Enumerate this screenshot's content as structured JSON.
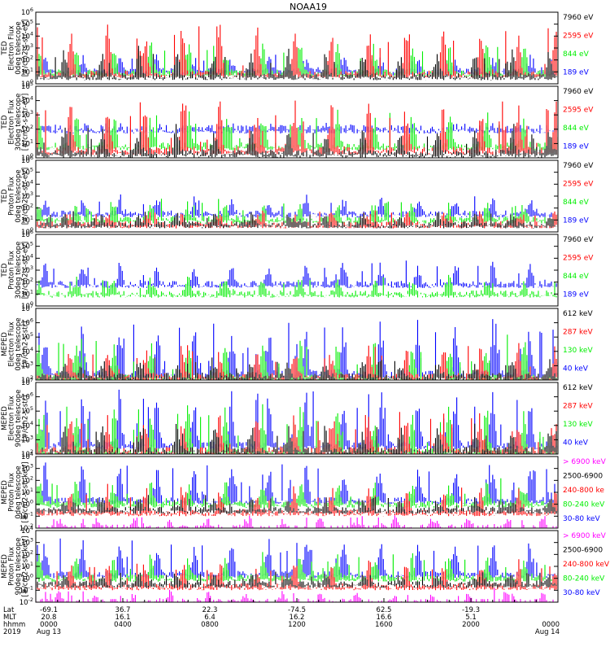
{
  "title": "NOAA19",
  "colors": {
    "black": "#000000",
    "red": "#ff0000",
    "green": "#00ee00",
    "blue": "#0000ff",
    "magenta": "#ff00ff"
  },
  "panels": [
    {
      "ylabel": [
        "TED",
        "Electron Flux",
        "0deg telescope",
        "[#/cm2-s-str-eV]"
      ],
      "ticks": [
        {
          "t": "10",
          "e": "6"
        },
        {
          "t": "10",
          "e": "5"
        },
        {
          "t": "10",
          "e": "4"
        },
        {
          "t": "10",
          "e": "3"
        },
        {
          "t": "10",
          "e": "2"
        },
        {
          "t": "10",
          "e": "1"
        },
        {
          "t": "10",
          "e": "0"
        }
      ],
      "legend": [
        {
          "text": "7960 eV",
          "color": "black"
        },
        {
          "text": "2595 eV",
          "color": "red"
        },
        {
          "text": "844 eV",
          "color": "green"
        },
        {
          "text": "189 eV",
          "color": "blue"
        }
      ]
    },
    {
      "ylabel": [
        "TED",
        "Electron Flux",
        "30deg telescope",
        "[#/cm2-s-str-eV]"
      ],
      "ticks": [
        {
          "t": "10",
          "e": "5"
        },
        {
          "t": "10",
          "e": "4"
        },
        {
          "t": "10",
          "e": "3"
        },
        {
          "t": "10",
          "e": "2"
        },
        {
          "t": "10",
          "e": "1"
        },
        {
          "t": "10",
          "e": "0"
        }
      ],
      "legend": [
        {
          "text": "7960 eV",
          "color": "black"
        },
        {
          "text": "2595 eV",
          "color": "red"
        },
        {
          "text": "844 eV",
          "color": "green"
        },
        {
          "text": "189 eV",
          "color": "blue"
        }
      ]
    },
    {
      "ylabel": [
        "TED",
        "Proton Flux",
        "0deg telescope",
        "[#/cm2-s-str-eV]"
      ],
      "ticks": [
        {
          "t": "10",
          "e": "6"
        },
        {
          "t": "10",
          "e": "5"
        },
        {
          "t": "10",
          "e": "4"
        },
        {
          "t": "10",
          "e": "3"
        },
        {
          "t": "10",
          "e": "2"
        },
        {
          "t": "10",
          "e": "1"
        },
        {
          "t": "10",
          "e": "0"
        }
      ],
      "legend": [
        {
          "text": "7960 eV",
          "color": "black"
        },
        {
          "text": "2595 eV",
          "color": "red"
        },
        {
          "text": "844 eV",
          "color": "green"
        },
        {
          "text": "189 eV",
          "color": "blue"
        }
      ]
    },
    {
      "ylabel": [
        "TED",
        "Proton Flux",
        "30deg telescope",
        "[#/cm2-s-str-eV]"
      ],
      "ticks": [
        {
          "t": "10",
          "e": "6"
        },
        {
          "t": "10",
          "e": "5"
        },
        {
          "t": "10",
          "e": "4"
        },
        {
          "t": "10",
          "e": "3"
        },
        {
          "t": "10",
          "e": "2"
        },
        {
          "t": "10",
          "e": "1"
        },
        {
          "t": "10",
          "e": "0"
        }
      ],
      "legend": [
        {
          "text": "7960 eV",
          "color": "black"
        },
        {
          "text": "2595 eV",
          "color": "red"
        },
        {
          "text": "844 eV",
          "color": "green"
        },
        {
          "text": "189 eV",
          "color": "blue"
        }
      ]
    },
    {
      "ylabel": [
        "MEPED",
        "Electron Flux",
        "0deg telescope",
        "[#/cm2-s-str]"
      ],
      "ticks": [
        {
          "t": "10",
          "e": "7"
        },
        {
          "t": "10",
          "e": "6"
        },
        {
          "t": "10",
          "e": "5"
        },
        {
          "t": "10",
          "e": "4"
        },
        {
          "t": "10",
          "e": "3"
        },
        {
          "t": "10",
          "e": "2"
        }
      ],
      "legend": [
        {
          "text": "612 keV",
          "color": "black"
        },
        {
          "text": "287 keV",
          "color": "red"
        },
        {
          "text": "130 keV",
          "color": "green"
        },
        {
          "text": "40 keV",
          "color": "blue"
        }
      ]
    },
    {
      "ylabel": [
        "MEPED",
        "Electron Flux",
        "90deg telescope",
        "[#/cm2-s-str]"
      ],
      "ticks": [
        {
          "t": "10",
          "e": "7"
        },
        {
          "t": "10",
          "e": "6"
        },
        {
          "t": "10",
          "e": "5"
        },
        {
          "t": "10",
          "e": "4"
        },
        {
          "t": "10",
          "e": "3"
        },
        {
          "t": "10",
          "e": "2"
        }
      ],
      "legend": [
        {
          "text": "612 keV",
          "color": "black"
        },
        {
          "text": "287 keV",
          "color": "red"
        },
        {
          "text": "130 keV",
          "color": "green"
        },
        {
          "text": "40 keV",
          "color": "blue"
        }
      ]
    },
    {
      "ylabel": [
        "MEPED",
        "Proton Flux",
        "0deg telescope",
        "[#/cm2-s-str-keV]"
      ],
      "ticks": [
        {
          "t": "10",
          "e": "4"
        },
        {
          "t": "10",
          "e": "3"
        },
        {
          "t": "10",
          "e": "2"
        },
        {
          "t": "10",
          "e": "1"
        },
        {
          "t": "10",
          "e": "0"
        },
        {
          "t": "10",
          "e": "-1"
        },
        {
          "t": "10",
          "e": "-2"
        }
      ],
      "legend": [
        {
          "text": "> 6900 keV",
          "color": "magenta"
        },
        {
          "text": "2500-6900",
          "color": "black"
        },
        {
          "text": "240-800 ke",
          "color": "red"
        },
        {
          "text": "80-240 keV",
          "color": "green"
        },
        {
          "text": "30-80 keV",
          "color": "blue"
        }
      ]
    },
    {
      "ylabel": [
        "MEPED",
        "Proton Flux",
        "90deg telescope",
        "[#/cm2-s-str-keV]"
      ],
      "ticks": [
        {
          "t": "10",
          "e": "4"
        },
        {
          "t": "10",
          "e": "3"
        },
        {
          "t": "10",
          "e": "2"
        },
        {
          "t": "10",
          "e": "1"
        },
        {
          "t": "10",
          "e": "0"
        },
        {
          "t": "10",
          "e": "-1"
        },
        {
          "t": "10",
          "e": "-2"
        }
      ],
      "legend": [
        {
          "text": "> 6900 keV",
          "color": "magenta"
        },
        {
          "text": "2500-6900",
          "color": "black"
        },
        {
          "text": "240-800 keV",
          "color": "red"
        },
        {
          "text": "80-240 keV",
          "color": "green"
        },
        {
          "text": "30-80 keV",
          "color": "blue"
        }
      ]
    }
  ],
  "xaxis": {
    "row_labels": [
      "Lat",
      "MLT",
      "hhmm",
      "2019"
    ],
    "columns": [
      {
        "lat": "-69.1",
        "mlt": "20.8",
        "hhmm": "0000",
        "date": "Aug 13"
      },
      {
        "lat": "36.7",
        "mlt": "16.1",
        "hhmm": "0400",
        "date": ""
      },
      {
        "lat": "22.3",
        "mlt": "6.4",
        "hhmm": "0800",
        "date": ""
      },
      {
        "lat": "-74.5",
        "mlt": "16.2",
        "hhmm": "1200",
        "date": ""
      },
      {
        "lat": "62.5",
        "mlt": "16.6",
        "hhmm": "1600",
        "date": ""
      },
      {
        "lat": "-19.3",
        "mlt": "5.1",
        "hhmm": "2000",
        "date": ""
      },
      {
        "lat": "",
        "mlt": "",
        "hhmm": "0000",
        "date": "Aug 14"
      }
    ]
  },
  "chart_data": {
    "type": "line",
    "title": "NOAA19",
    "x_range": [
      "2019-08-13 00:00",
      "2019-08-14 00:00"
    ],
    "x_ticks": [
      "0000",
      "0400",
      "0800",
      "1200",
      "1600",
      "2000",
      "0000"
    ],
    "y_scale": "log",
    "panels": [
      {
        "ylim": [
          1,
          1000000
        ],
        "series": [
          {
            "name": "7960 eV",
            "peak_log10": 3.0,
            "base_log10": 0.6
          },
          {
            "name": "2595 eV",
            "peak_log10": 5.0,
            "base_log10": 0.8
          },
          {
            "name": "844 eV",
            "peak_log10": 3.5,
            "base_log10": 0.9
          },
          {
            "name": "189 eV",
            "peak_log10": 2.4,
            "base_log10": 1.0
          }
        ]
      },
      {
        "ylim": [
          1,
          100000
        ],
        "series": [
          {
            "name": "7960 eV",
            "peak_log10": 2.2,
            "base_log10": 0.3
          },
          {
            "name": "2595 eV",
            "peak_log10": 4.2,
            "base_log10": 0.5
          },
          {
            "name": "844 eV",
            "peak_log10": 3.3,
            "base_log10": 0.8
          },
          {
            "name": "189 eV",
            "peak_log10": 2.2,
            "base_log10": 2.0
          }
        ]
      },
      {
        "ylim": [
          1,
          1000000
        ],
        "series": [
          {
            "name": "7960 eV",
            "peak_log10": 1.6,
            "base_log10": 0.6
          },
          {
            "name": "2595 eV",
            "peak_log10": 1.8,
            "base_log10": 0.6
          },
          {
            "name": "844 eV",
            "peak_log10": 2.5,
            "base_log10": 1.0
          },
          {
            "name": "189 eV",
            "peak_log10": 3.0,
            "base_log10": 1.5
          }
        ]
      },
      {
        "ylim": [
          1,
          1000000
        ],
        "series": [
          {
            "name": "844 eV",
            "peak_log10": 2.5,
            "base_log10": 1.0
          },
          {
            "name": "189 eV",
            "peak_log10": 3.8,
            "base_log10": 1.8
          }
        ]
      },
      {
        "ylim": [
          100,
          10000000
        ],
        "series": [
          {
            "name": "612 keV",
            "peak_log10": 3.3,
            "base_log10": 2.2
          },
          {
            "name": "287 keV",
            "peak_log10": 4.5,
            "base_log10": 2.2
          },
          {
            "name": "130 keV",
            "peak_log10": 5.0,
            "base_log10": 2.1
          },
          {
            "name": "40 keV",
            "peak_log10": 6.2,
            "base_log10": 2.4
          }
        ]
      },
      {
        "ylim": [
          100,
          10000000
        ],
        "series": [
          {
            "name": "612 keV",
            "peak_log10": 4.0,
            "base_log10": 2.2
          },
          {
            "name": "287 keV",
            "peak_log10": 5.0,
            "base_log10": 2.2
          },
          {
            "name": "130 keV",
            "peak_log10": 5.5,
            "base_log10": 2.1
          },
          {
            "name": "40 keV",
            "peak_log10": 6.5,
            "base_log10": 2.6
          }
        ]
      },
      {
        "ylim": [
          0.01,
          10000
        ],
        "series": [
          {
            "name": "> 6900 keV",
            "peak_log10": -1.0,
            "base_log10": -2.0
          },
          {
            "name": "2500-6900",
            "peak_log10": 0.5,
            "base_log10": -0.5
          },
          {
            "name": "240-800 ke",
            "peak_log10": 1.5,
            "base_log10": -0.7
          },
          {
            "name": "80-240 keV",
            "peak_log10": 2.0,
            "base_log10": 0.0
          },
          {
            "name": "30-80 keV",
            "peak_log10": 3.5,
            "base_log10": 0.3
          }
        ]
      },
      {
        "ylim": [
          0.01,
          10000
        ],
        "series": [
          {
            "name": "> 6900 keV",
            "peak_log10": -1.0,
            "base_log10": -2.0
          },
          {
            "name": "2500-6900",
            "peak_log10": 0.5,
            "base_log10": -0.5
          },
          {
            "name": "240-800 keV",
            "peak_log10": 1.5,
            "base_log10": -0.7
          },
          {
            "name": "80-240 keV",
            "peak_log10": 2.0,
            "base_log10": 0.0
          },
          {
            "name": "30-80 keV",
            "peak_log10": 3.5,
            "base_log10": 0.3
          }
        ]
      }
    ],
    "grid": false,
    "legend_placement": "right"
  }
}
